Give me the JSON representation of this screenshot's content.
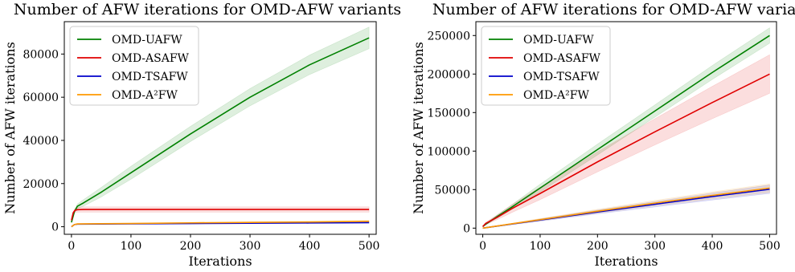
{
  "chart_data": [
    {
      "type": "line",
      "title": "Number of AFW iterations for OMD-AFW variants",
      "xlabel": "Iterations",
      "ylabel": "Number of AFW iterations",
      "xlim": [
        -12,
        512
      ],
      "ylim": [
        -3500,
        95000
      ],
      "xticks": [
        0,
        100,
        200,
        300,
        400,
        500
      ],
      "yticks": [
        0,
        20000,
        40000,
        60000,
        80000
      ],
      "grid": false,
      "legend_position": "top-left",
      "series": [
        {
          "name": "OMD-UAFW",
          "color": "#008000",
          "x": [
            0,
            5,
            10,
            20,
            50,
            100,
            200,
            300,
            400,
            500
          ],
          "y": [
            2000,
            7000,
            9500,
            11000,
            16000,
            25000,
            43000,
            60000,
            75000,
            87500
          ],
          "band": [
            0,
            500,
            1000,
            1500,
            2200,
            3000,
            3500,
            4000,
            4500,
            5000
          ]
        },
        {
          "name": "OMD-ASAFW",
          "color": "#e00000",
          "x": [
            0,
            3,
            6,
            10,
            20,
            50,
            100,
            200,
            300,
            400,
            500
          ],
          "y": [
            3000,
            6500,
            7600,
            7900,
            8000,
            8000,
            8000,
            8000,
            8000,
            8000,
            8000
          ],
          "band": [
            0,
            500,
            900,
            1100,
            1200,
            1200,
            1200,
            1200,
            1200,
            1200,
            1200
          ]
        },
        {
          "name": "OMD-TSAFW",
          "color": "#0000cc",
          "x": [
            0,
            5,
            10,
            50,
            100,
            200,
            300,
            400,
            500
          ],
          "y": [
            0,
            1000,
            1200,
            1250,
            1350,
            1500,
            1650,
            1750,
            1900
          ],
          "band": [
            0,
            100,
            100,
            100,
            150,
            200,
            200,
            250,
            300
          ]
        },
        {
          "name": "OMD-A²FW",
          "color": "#ff9900",
          "x": [
            0,
            5,
            10,
            50,
            100,
            200,
            300,
            400,
            500
          ],
          "y": [
            0,
            1000,
            1300,
            1400,
            1500,
            1800,
            2000,
            2200,
            2500
          ],
          "band": [
            0,
            100,
            150,
            150,
            200,
            250,
            300,
            350,
            400
          ]
        }
      ]
    },
    {
      "type": "line",
      "title": "Number of AFW iterations for OMD-AFW variants",
      "xlabel": "Iterations",
      "ylabel": "Number of AFW iterations",
      "xlim": [
        -12,
        512
      ],
      "ylim": [
        -8000,
        268000
      ],
      "xticks": [
        0,
        100,
        200,
        300,
        400,
        500
      ],
      "yticks": [
        0,
        50000,
        100000,
        150000,
        200000,
        250000
      ],
      "grid": false,
      "legend_position": "top-left",
      "series": [
        {
          "name": "OMD-UAFW",
          "color": "#008000",
          "x": [
            0,
            5,
            25,
            50,
            100,
            200,
            300,
            400,
            500
          ],
          "y": [
            2000,
            5000,
            15000,
            27000,
            52000,
            102000,
            152000,
            202000,
            250000
          ],
          "band": [
            0,
            1000,
            2000,
            3000,
            5000,
            7000,
            8000,
            9000,
            10000
          ]
        },
        {
          "name": "OMD-ASAFW",
          "color": "#e00000",
          "x": [
            0,
            5,
            25,
            50,
            100,
            200,
            300,
            400,
            500
          ],
          "y": [
            2000,
            6000,
            14000,
            25000,
            45000,
            86000,
            125000,
            163000,
            200000
          ],
          "band": [
            0,
            1500,
            3000,
            5000,
            8000,
            13000,
            17000,
            21000,
            25000
          ]
        },
        {
          "name": "OMD-TSAFW",
          "color": "#0000cc",
          "x": [
            0,
            100,
            200,
            300,
            400,
            500
          ],
          "y": [
            0,
            10500,
            21000,
            31000,
            41000,
            50500
          ],
          "band": [
            0,
            1500,
            2500,
            3500,
            4500,
            5500
          ]
        },
        {
          "name": "OMD-A²FW",
          "color": "#ff9900",
          "x": [
            0,
            100,
            200,
            300,
            400,
            500
          ],
          "y": [
            0,
            11000,
            22000,
            32500,
            42500,
            52000
          ],
          "band": [
            0,
            1500,
            2500,
            3500,
            4500,
            5500
          ]
        }
      ]
    }
  ]
}
